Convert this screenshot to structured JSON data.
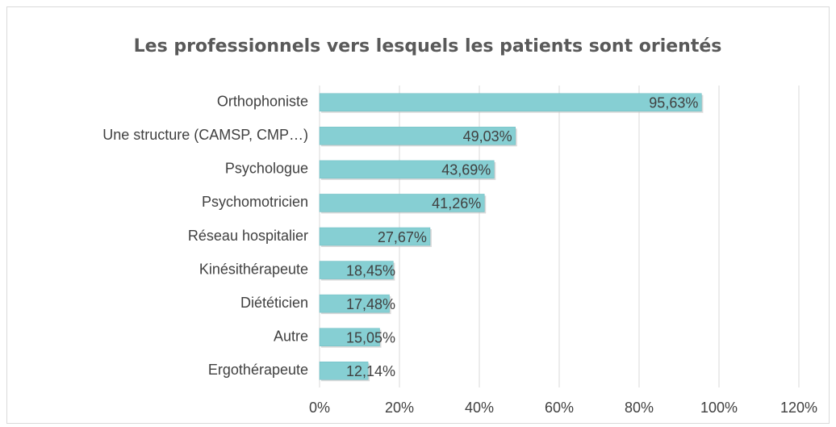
{
  "chart_data": {
    "type": "bar",
    "orientation": "horizontal",
    "title": "Les professionnels vers lesquels les patients sont orientés",
    "categories": [
      "Orthophoniste",
      "Une structure (CAMSP, CMP…)",
      "Psychologue",
      "Psychomotricien",
      "Réseau hospitalier",
      "Kinésithérapeute",
      "Diététicien",
      "Autre",
      "Ergothérapeute"
    ],
    "values": [
      95.63,
      49.03,
      43.69,
      41.26,
      27.67,
      18.45,
      17.48,
      15.05,
      12.14
    ],
    "value_labels": [
      "95,63%",
      "49,03%",
      "43,69%",
      "41,26%",
      "27,67%",
      "18,45%",
      "17,48%",
      "15,05%",
      "12,14%"
    ],
    "color": "#86cfd3",
    "xlim": [
      0,
      120
    ],
    "xticks": [
      {
        "value": 0,
        "label": "0%"
      },
      {
        "value": 20,
        "label": "20%"
      },
      {
        "value": 40,
        "label": "40%"
      },
      {
        "value": 60,
        "label": "60%"
      },
      {
        "value": 80,
        "label": "80%"
      },
      {
        "value": 100,
        "label": "100%"
      },
      {
        "value": 120,
        "label": "120%"
      }
    ],
    "grid": true
  }
}
